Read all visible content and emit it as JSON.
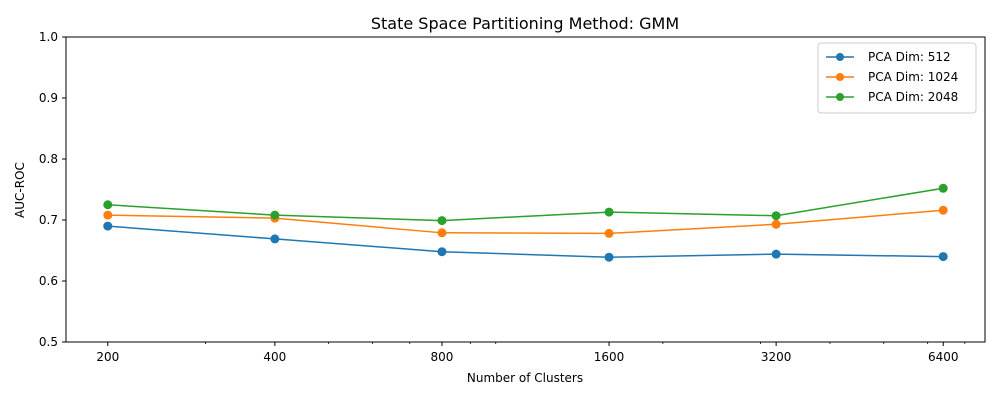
{
  "chart_data": {
    "type": "line",
    "title": "State Space Partitioning Method: GMM",
    "xlabel": "Number of Clusters",
    "ylabel": "AUC-ROC",
    "x_scale": "log2",
    "x": [
      200,
      400,
      800,
      1600,
      3200,
      6400
    ],
    "x_tick_labels": [
      "200",
      "400",
      "800",
      "1600",
      "3200",
      "6400"
    ],
    "ylim": [
      0.5,
      1.0
    ],
    "y_ticks": [
      0.5,
      0.6,
      0.7,
      0.8,
      0.9,
      1.0
    ],
    "y_tick_labels": [
      "0.5",
      "0.6",
      "0.7",
      "0.8",
      "0.9",
      "1.0"
    ],
    "grid": false,
    "legend_position": "top-right",
    "series": [
      {
        "name": "PCA Dim: 512",
        "color": "#1f77b4",
        "values": [
          0.69,
          0.669,
          0.648,
          0.639,
          0.644,
          0.64
        ]
      },
      {
        "name": "PCA Dim: 1024",
        "color": "#ff7f0e",
        "values": [
          0.708,
          0.703,
          0.679,
          0.678,
          0.693,
          0.716
        ]
      },
      {
        "name": "PCA Dim: 2048",
        "color": "#2ca02c",
        "values": [
          0.725,
          0.708,
          0.699,
          0.713,
          0.707,
          0.752
        ]
      }
    ]
  }
}
